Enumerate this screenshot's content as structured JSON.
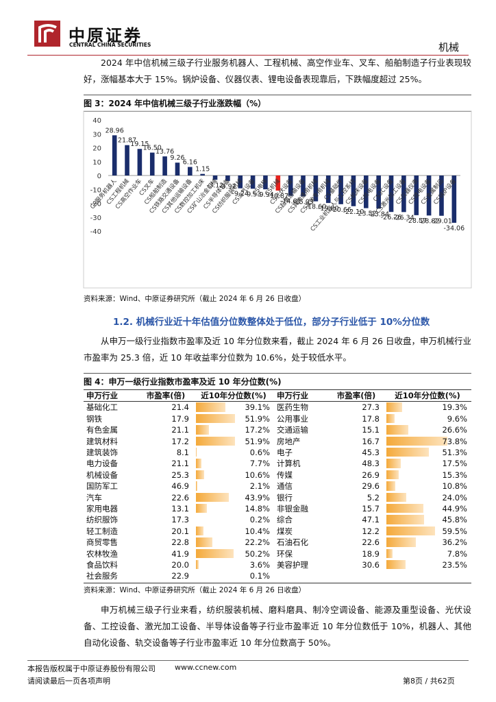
{
  "header": {
    "logo_cn": "中原证券",
    "logo_en": "CENTRAL CHINA SECURITIES",
    "section": "机械"
  },
  "intro": "2024 年中信机械三级子行业服务机器人、工程机械、高空作业车、叉车、船舶制造子行业表现较好，涨幅基本大于 15%。锅炉设备、仪器仪表、锂电设备表现靠后，下跌幅度超过 25%。",
  "chart_data": {
    "type": "bar",
    "title": "图 3：2024 年中信机械三级子行业涨跌幅（%）",
    "categories": [
      "CS服务机器人",
      "CS工程机械",
      "CS高空作业车",
      "CS叉车",
      "CS船舶制造",
      "CS铁路交通设备",
      "CS其他运输设备",
      "CS数控加工机床",
      "CS矿山冶金机械",
      "CS半导体设备",
      "CS纺织服装机械",
      "CS油气设备",
      "CS电梯",
      "CS机械",
      "CS光伏设备",
      "CS起重运输设备",
      "CS其他通用机械",
      "CS其他专用机械",
      "CS基础件",
      "CS工业机器人与工控系统",
      "CS机床设备",
      "CS核电设备",
      "CS3C设备",
      "CS激光加工设备",
      "CS仪器仪表",
      "CS锂电设备",
      "CS金属制品",
      "CS锅炉设备"
    ],
    "values": [
      28.96,
      21.87,
      19.15,
      16.5,
      13.76,
      9.26,
      6.16,
      1.15,
      -3.12,
      -3.92,
      -9.24,
      -9.53,
      -9.94,
      -10.87,
      -14.61,
      -15.03,
      -18.6,
      -19.8,
      -20.66,
      -22.1,
      -23.52,
      -23.84,
      -26.26,
      -26.34,
      -28.57,
      -28.82,
      -29.01,
      -34.06
    ],
    "value_labels": [
      "28.96",
      "21.87",
      "19.15",
      "16.50",
      "13.76",
      "9.26",
      "6.16",
      "1.15",
      "-3.12",
      "-3.92",
      "-9.24",
      "-9.53",
      "-9.94",
      "-10.87",
      "-14.61",
      "-15.03",
      "-18.60",
      "-19.80",
      "-20.66",
      "-22.10",
      "-23.52",
      "-23.84",
      "-26.26",
      "-26.34",
      "-28.57",
      "-28.82",
      "-29.01",
      "-34.06"
    ],
    "colors": [
      "#1a2d6b",
      "#1a2d6b",
      "#1a2d6b",
      "#1a2d6b",
      "#1a2d6b",
      "#1a2d6b",
      "#1a2d6b",
      "#1a2d6b",
      "#1a2d6b",
      "#1a2d6b",
      "#1a2d6b",
      "#1a2d6b",
      "#1a2d6b",
      "#e8211d",
      "#1a2d6b",
      "#1a2d6b",
      "#1a2d6b",
      "#1a2d6b",
      "#1a2d6b",
      "#1a2d6b",
      "#1a2d6b",
      "#1a2d6b",
      "#1a2d6b",
      "#1a2d6b",
      "#1a2d6b",
      "#1a2d6b",
      "#1a2d6b",
      "#1a2d6b"
    ],
    "ylim": [
      -40,
      40
    ],
    "yticks": [
      -40,
      -30,
      -20,
      -10,
      0,
      10,
      20,
      30,
      40
    ],
    "grid": false
  },
  "chart_source": "资料来源：Wind、中原证券研究所（截止 2024 年 6 月 26 日收盘）",
  "section_heading": "1.2. 机械行业近十年估值分位数整体处于低位，部分子行业低于 10%分位数",
  "paragraph2": "从申万一级行业指数市盈率及近 10 年分位数来看，截止 2024 年 6 月 26 日收盘，申万机械行业市盈率为 25.3 倍，近 10 年收益率分位数为 10.6%，处于较低水平。",
  "table": {
    "title": "图 4：申万一级行业指数市盈率及近 10 年分位数(%)",
    "columns": [
      "申万行业",
      "市盈率(倍)",
      "近10年分位数(%)"
    ],
    "rows": [
      [
        "基础化工",
        "21.4",
        "39.1%",
        "医药生物",
        "27.3",
        "19.3%"
      ],
      [
        "钢铁",
        "17.9",
        "51.9%",
        "公用事业",
        "17.8",
        "9.6%"
      ],
      [
        "有色金属",
        "21.1",
        "17.2%",
        "交通运输",
        "15.1",
        "26.6%"
      ],
      [
        "建筑材料",
        "17.2",
        "51.9%",
        "房地产",
        "16.7",
        "73.8%"
      ],
      [
        "建筑装饰",
        "8.1",
        "0.6%",
        "电子",
        "45.3",
        "51.3%"
      ],
      [
        "电力设备",
        "21.1",
        "7.7%",
        "计算机",
        "48.3",
        "17.5%"
      ],
      [
        "机械设备",
        "25.3",
        "10.6%",
        "传媒",
        "26.9",
        "15.3%"
      ],
      [
        "国防军工",
        "46.9",
        "2.1%",
        "通信",
        "29.6",
        "10.8%"
      ],
      [
        "汽车",
        "22.6",
        "43.9%",
        "银行",
        "5.2",
        "24.0%"
      ],
      [
        "家用电器",
        "13.1",
        "14.8%",
        "非银金融",
        "15.7",
        "44.9%"
      ],
      [
        "纺织服饰",
        "17.3",
        "0.2%",
        "综合",
        "47.1",
        "45.8%"
      ],
      [
        "轻工制造",
        "20.1",
        "10.4%",
        "煤炭",
        "12.2",
        "59.5%"
      ],
      [
        "商贸零售",
        "22.8",
        "22.2%",
        "石油石化",
        "22.6",
        "36.2%"
      ],
      [
        "农林牧渔",
        "41.9",
        "50.2%",
        "环保",
        "18.9",
        "7.8%"
      ],
      [
        "食品饮料",
        "20.0",
        "3.6%",
        "美容护理",
        "30.6",
        "23.5%"
      ],
      [
        "社会服务",
        "22.9",
        "0.1%"
      ]
    ],
    "source": "资料来源：Wind、中原证券研究所（截止 2024 年 6 月 26 日收盘）"
  },
  "paragraph3": "申万机械三级子行业来看，纺织服装机械、磨料磨具、制冷空调设备、能源及重型设备、光伏设备、工控设备、激光加工设备、半导体设备等子行业市盈率近 10 年分位数低于 10%，机器人、其他自动化设备、轨交设备等子行业市盈率近 10 年分位数高于 50%。",
  "footer": {
    "copyright": "本报告版权属于中原证券股份有限公司",
    "website": "www.ccnew.com",
    "notice": "请阅读最后一页各项声明",
    "page": "第8页 / 共62页"
  }
}
